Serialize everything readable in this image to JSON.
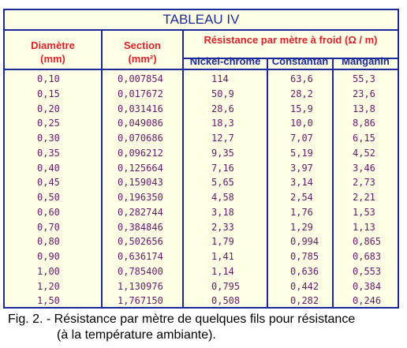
{
  "title": "TABLEAU IV",
  "headers": {
    "diameter": "Diamètre",
    "diameter_unit": "(mm)",
    "section": "Section",
    "section_unit": "(mm²)",
    "resistance": "Résistance par mètre à froid (Ω / m)",
    "nickel": "Nickel-chrome",
    "constantan": "Constantan",
    "manganin": "Manganin"
  },
  "rows": [
    [
      "0,10",
      "0,007854",
      "114",
      "63,6",
      "55,3"
    ],
    [
      "0,15",
      "0,017672",
      "50,9",
      "28,2",
      "23,6"
    ],
    [
      "0,20",
      "0,031416",
      "28,6",
      "15,9",
      "13,8"
    ],
    [
      "0,25",
      "0,049086",
      "18,3",
      "10,0",
      "8,86"
    ],
    [
      "0,30",
      "0,070686",
      "12,7",
      "7,07",
      "6,15"
    ],
    [
      "0,35",
      "0,096212",
      "9,35",
      "5,19",
      "4,52"
    ],
    [
      "0,40",
      "0,125664",
      "7,16",
      "3,97",
      "3,46"
    ],
    [
      "0,45",
      "0,159043",
      "5,65",
      "3,14",
      "2,73"
    ],
    [
      "0,50",
      "0,196350",
      "4,58",
      "2,54",
      "2,21"
    ],
    [
      "0,60",
      "0,282744",
      "3,18",
      "1,76",
      "1,53"
    ],
    [
      "0,70",
      "0,384846",
      "2,33",
      "1,29",
      "1,13"
    ],
    [
      "0,80",
      "0,502656",
      "1,79",
      "0,994",
      "0,865"
    ],
    [
      "0,90",
      "0,636174",
      "1,41",
      "0,785",
      "0,683"
    ],
    [
      "1,00",
      "0,785400",
      "1,14",
      "0,636",
      "0,553"
    ],
    [
      "1,20",
      "1,130976",
      "0,795",
      "0,442",
      "0,384"
    ],
    [
      "1,50",
      "1,767150",
      "0,508",
      "0,282",
      "0,246"
    ]
  ],
  "caption_line1": "Fig. 2. - Résistance par mètre de quelques fils pour résistance",
  "caption_line2": "(à la température ambiante).",
  "colors": {
    "border": "#1a2a9c",
    "background": "#ffffe6",
    "header_red": "#e0202a",
    "header_blue": "#1a2a9c",
    "values": "#6a1a6a"
  }
}
